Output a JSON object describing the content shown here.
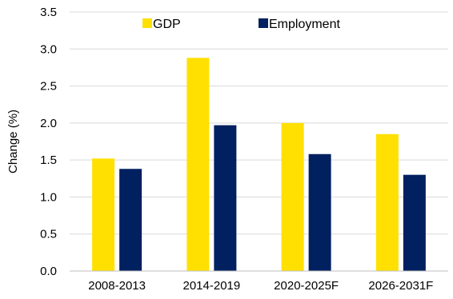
{
  "chart_data": {
    "type": "bar",
    "categories": [
      "2008-2013",
      "2014-2019",
      "2020-2025F",
      "2026-2031F"
    ],
    "series": [
      {
        "name": "GDP",
        "color": "#ffe000",
        "values": [
          1.52,
          2.88,
          2.0,
          1.85
        ]
      },
      {
        "name": "Employment",
        "color": "#002060",
        "values": [
          1.38,
          1.97,
          1.58,
          1.3
        ]
      }
    ],
    "ylabel": "Change (%)",
    "ylim": [
      0,
      3.5
    ],
    "yticks": [
      "0.0",
      "0.5",
      "1.0",
      "1.5",
      "2.0",
      "2.5",
      "3.0",
      "3.5"
    ],
    "grid": true,
    "legend": "top-center"
  }
}
